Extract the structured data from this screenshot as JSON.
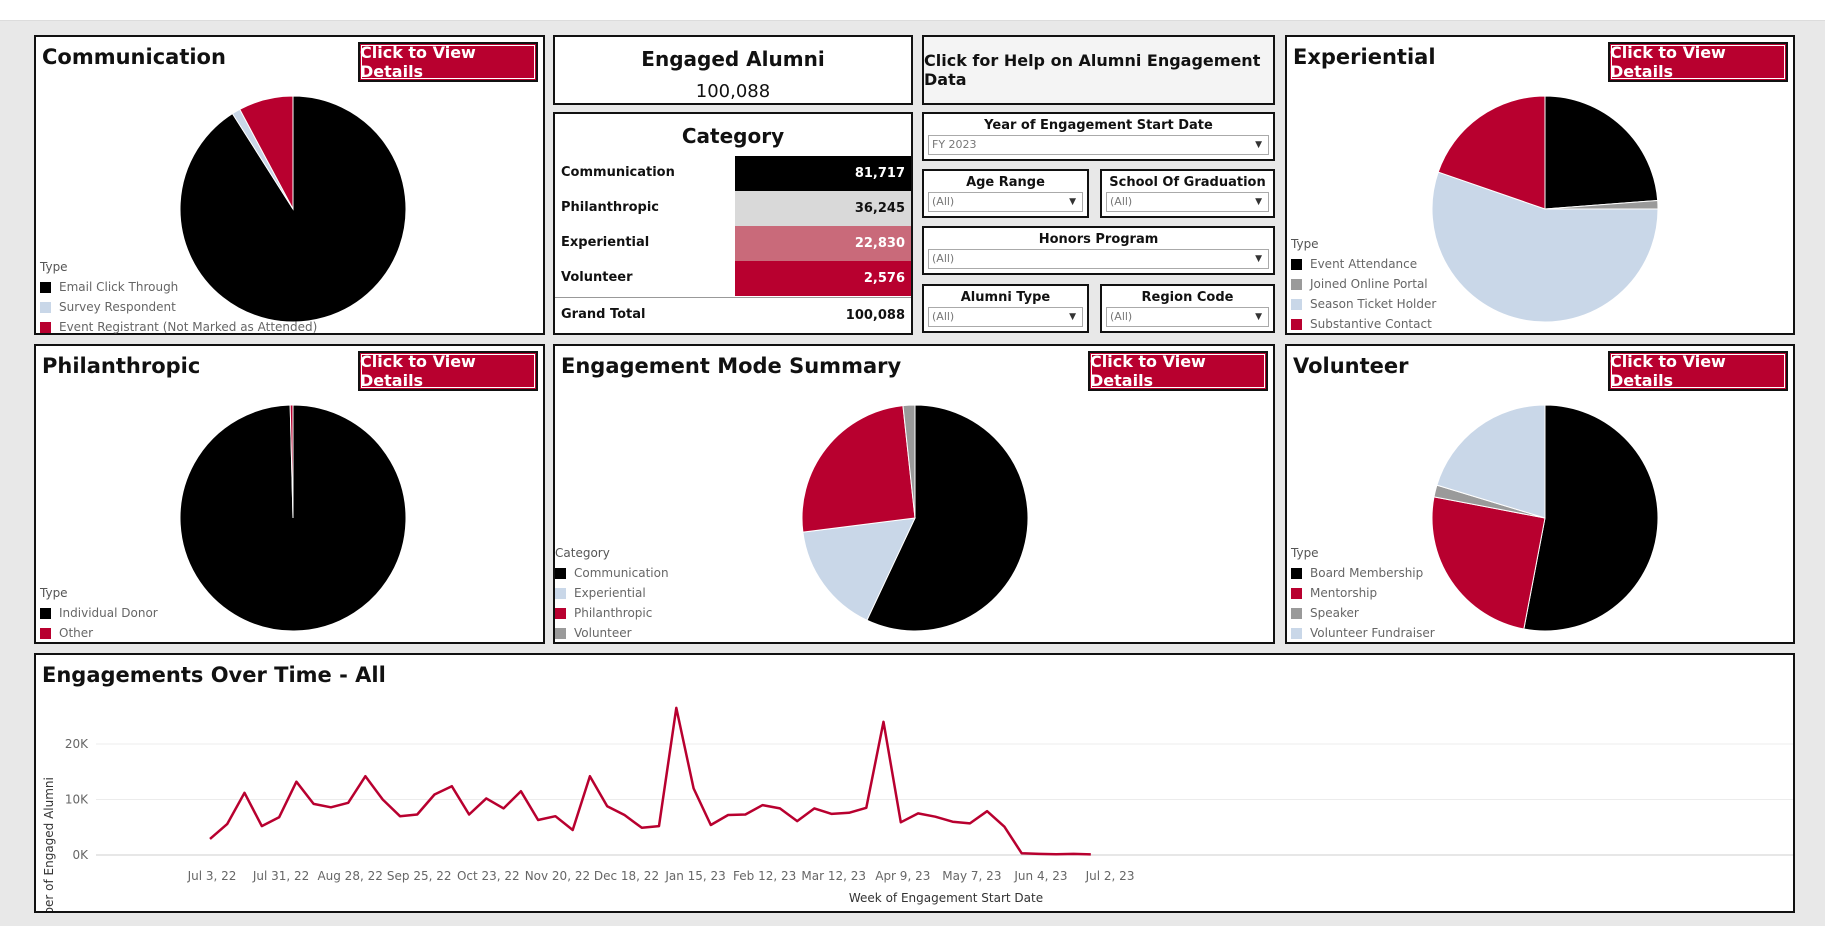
{
  "colors": {
    "black": "#000000",
    "crimson": "#b8002f",
    "light_blue": "#c9d7e8",
    "gray": "#9a9a9a",
    "light_gray": "#d9d9d9",
    "pink": "#c96a7a"
  },
  "communication": {
    "title": "Communication",
    "button": "Click to View Details",
    "legend_title": "Type",
    "legend": [
      {
        "label": "Email Click Through",
        "color": "#000000"
      },
      {
        "label": "Survey Respondent",
        "color": "#c9d7e8"
      },
      {
        "label": "Event Registrant (Not Marked as Attended)",
        "color": "#b8002f"
      }
    ],
    "slices": [
      {
        "name": "Email Click Through",
        "value": 0.91,
        "color": "#000000"
      },
      {
        "name": "Survey Respondent",
        "value": 0.012,
        "color": "#c9d7e8"
      },
      {
        "name": "Event Registrant (Not Marked as Attended)",
        "value": 0.078,
        "color": "#b8002f"
      }
    ]
  },
  "engaged_alumni": {
    "title": "Engaged Alumni",
    "value": "100,088"
  },
  "category": {
    "title": "Category",
    "rows": [
      {
        "label": "Communication",
        "value": "81,717",
        "bg": "#000000",
        "fg": "#ffffff"
      },
      {
        "label": "Philanthropic",
        "value": "36,245",
        "bg": "#d9d9d9",
        "fg": "#111111"
      },
      {
        "label": "Experiential",
        "value": "22,830",
        "bg": "#c96a7a",
        "fg": "#ffffff"
      },
      {
        "label": "Volunteer",
        "value": "2,576",
        "bg": "#b8002f",
        "fg": "#ffffff"
      }
    ],
    "total_label": "Grand Total",
    "total_value": "100,088"
  },
  "help": {
    "label": "Click for Help on Alumni Engagement Data"
  },
  "filters": {
    "year": {
      "label": "Year of Engagement Start Date",
      "value": "FY 2023"
    },
    "age": {
      "label": "Age Range",
      "value": "(All)"
    },
    "school": {
      "label": "School Of Graduation",
      "value": "(All)"
    },
    "honors": {
      "label": "Honors Program",
      "value": "(All)"
    },
    "alumni_type": {
      "label": "Alumni Type",
      "value": "(All)"
    },
    "region": {
      "label": "Region Code",
      "value": "(All)"
    }
  },
  "experiential": {
    "title": "Experiential",
    "button": "Click to View Details",
    "legend_title": "Type",
    "legend": [
      {
        "label": "Event Attendance",
        "color": "#000000"
      },
      {
        "label": "Joined Online Portal",
        "color": "#9a9a9a"
      },
      {
        "label": "Season Ticket Holder",
        "color": "#c9d7e8"
      },
      {
        "label": "Substantive Contact",
        "color": "#b8002f"
      }
    ],
    "slices": [
      {
        "name": "Event Attendance",
        "value": 0.238,
        "color": "#000000"
      },
      {
        "name": "Joined Online Portal",
        "value": 0.012,
        "color": "#9a9a9a"
      },
      {
        "name": "Season Ticket Holder",
        "value": 0.553,
        "color": "#c9d7e8"
      },
      {
        "name": "Substantive Contact",
        "value": 0.197,
        "color": "#b8002f"
      }
    ]
  },
  "philanthropic": {
    "title": "Philanthropic",
    "button": "Click to View Details",
    "legend_title": "Type",
    "legend": [
      {
        "label": "Individual Donor",
        "color": "#000000"
      },
      {
        "label": "Other",
        "color": "#b8002f"
      }
    ],
    "slices": [
      {
        "name": "Individual Donor",
        "value": 0.996,
        "color": "#000000"
      },
      {
        "name": "Other",
        "value": 0.004,
        "color": "#b8002f"
      }
    ]
  },
  "mode_summary": {
    "title": "Engagement Mode Summary",
    "button": "Click to View Details",
    "legend_title": "Category",
    "legend": [
      {
        "label": "Communication",
        "color": "#000000"
      },
      {
        "label": "Experiential",
        "color": "#c9d7e8"
      },
      {
        "label": "Philanthropic",
        "color": "#b8002f"
      },
      {
        "label": "Volunteer",
        "color": "#9a9a9a"
      }
    ],
    "slices": [
      {
        "name": "Communication",
        "value": 0.57,
        "color": "#000000"
      },
      {
        "name": "Experiential",
        "value": 0.16,
        "color": "#c9d7e8"
      },
      {
        "name": "Philanthropic",
        "value": 0.253,
        "color": "#b8002f"
      },
      {
        "name": "Volunteer",
        "value": 0.017,
        "color": "#9a9a9a"
      }
    ]
  },
  "volunteer": {
    "title": "Volunteer",
    "button": "Click to View Details",
    "legend_title": "Type",
    "legend": [
      {
        "label": "Board Membership",
        "color": "#000000"
      },
      {
        "label": "Mentorship",
        "color": "#b8002f"
      },
      {
        "label": "Speaker",
        "color": "#9a9a9a"
      },
      {
        "label": "Volunteer Fundraiser",
        "color": "#c9d7e8"
      }
    ],
    "slices": [
      {
        "name": "Board Membership",
        "value": 0.53,
        "color": "#000000"
      },
      {
        "name": "Mentorship",
        "value": 0.25,
        "color": "#b8002f"
      },
      {
        "name": "Speaker",
        "value": 0.017,
        "color": "#9a9a9a"
      },
      {
        "name": "Volunteer Fundraiser",
        "value": 0.203,
        "color": "#c9d7e8"
      }
    ]
  },
  "over_time": {
    "title": "Engagements Over Time - All",
    "ylabel": "Number of Engaged Alumni",
    "xlabel": "Week of Engagement Start Date",
    "y_ticks": [
      "0K",
      "10K",
      "20K"
    ],
    "x_ticks": [
      "Jul 3, 22",
      "Jul 31, 22",
      "Aug 28, 22",
      "Sep 25, 22",
      "Oct 23, 22",
      "Nov 20, 22",
      "Dec 18, 22",
      "Jan 15, 23",
      "Feb 12, 23",
      "Mar 12, 23",
      "Apr 9, 23",
      "May 7, 23",
      "Jun 4, 23",
      "Jul 2, 23"
    ]
  },
  "chart_data": {
    "type": "line",
    "title": "Engagements Over Time - All",
    "xlabel": "Week of Engagement Start Date",
    "ylabel": "Number of Engaged Alumni",
    "ylim": [
      0,
      27000
    ],
    "grid": true,
    "x_start": "2022-06-26",
    "x_step_days": 7,
    "series": [
      {
        "color": "#b8002f",
        "values": [
          2900,
          5600,
          11200,
          5200,
          6800,
          13200,
          9200,
          8600,
          9400,
          14200,
          10000,
          7000,
          7300,
          10900,
          12400,
          7300,
          10200,
          8400,
          11500,
          6300,
          7000,
          4500,
          14200,
          8800,
          7200,
          4900,
          5200,
          26500,
          12000,
          5400,
          7200,
          7300,
          9000,
          8400,
          6100,
          8400,
          7400,
          7600,
          8500,
          24000,
          5900,
          7500,
          6900,
          6000,
          5700,
          7900,
          5100,
          300,
          200,
          150,
          200,
          100
        ]
      }
    ]
  }
}
